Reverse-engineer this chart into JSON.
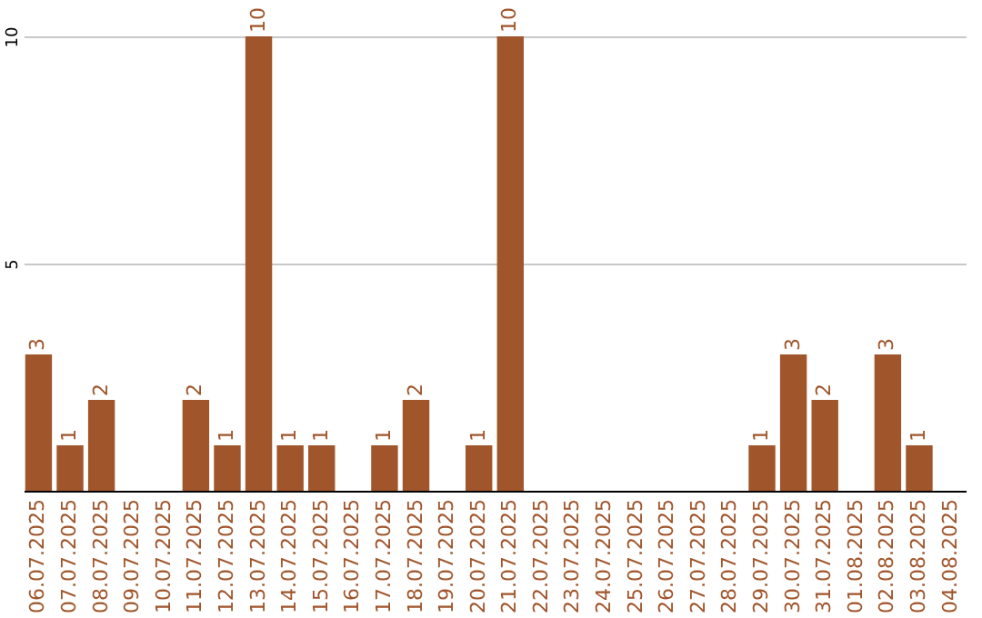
{
  "chart_data": {
    "type": "bar",
    "categories": [
      "06.07.2025",
      "07.07.2025",
      "08.07.2025",
      "09.07.2025",
      "10.07.2025",
      "11.07.2025",
      "12.07.2025",
      "13.07.2025",
      "14.07.2025",
      "15.07.2025",
      "16.07.2025",
      "17.07.2025",
      "18.07.2025",
      "19.07.2025",
      "20.07.2025",
      "21.07.2025",
      "22.07.2025",
      "23.07.2025",
      "24.07.2025",
      "25.07.2025",
      "26.07.2025",
      "27.07.2025",
      "28.07.2025",
      "29.07.2025",
      "30.07.2025",
      "31.07.2025",
      "01.08.2025",
      "02.08.2025",
      "03.08.2025",
      "04.08.2025"
    ],
    "values": [
      3,
      1,
      2,
      0,
      0,
      2,
      1,
      10,
      1,
      1,
      0,
      1,
      2,
      0,
      1,
      10,
      0,
      0,
      0,
      0,
      0,
      0,
      0,
      1,
      3,
      2,
      0,
      3,
      1,
      0
    ],
    "value_labels": [
      "3",
      "1",
      "2",
      null,
      null,
      "2",
      "1",
      "10",
      "1",
      "1",
      null,
      "1",
      "2",
      null,
      "1",
      "10",
      null,
      null,
      null,
      null,
      null,
      null,
      null,
      "1",
      "3",
      "2",
      null,
      "3",
      "1",
      null
    ],
    "color": "#a0552b",
    "ylim": [
      0,
      10
    ],
    "yticks": [
      5,
      10
    ],
    "grid": "y"
  }
}
